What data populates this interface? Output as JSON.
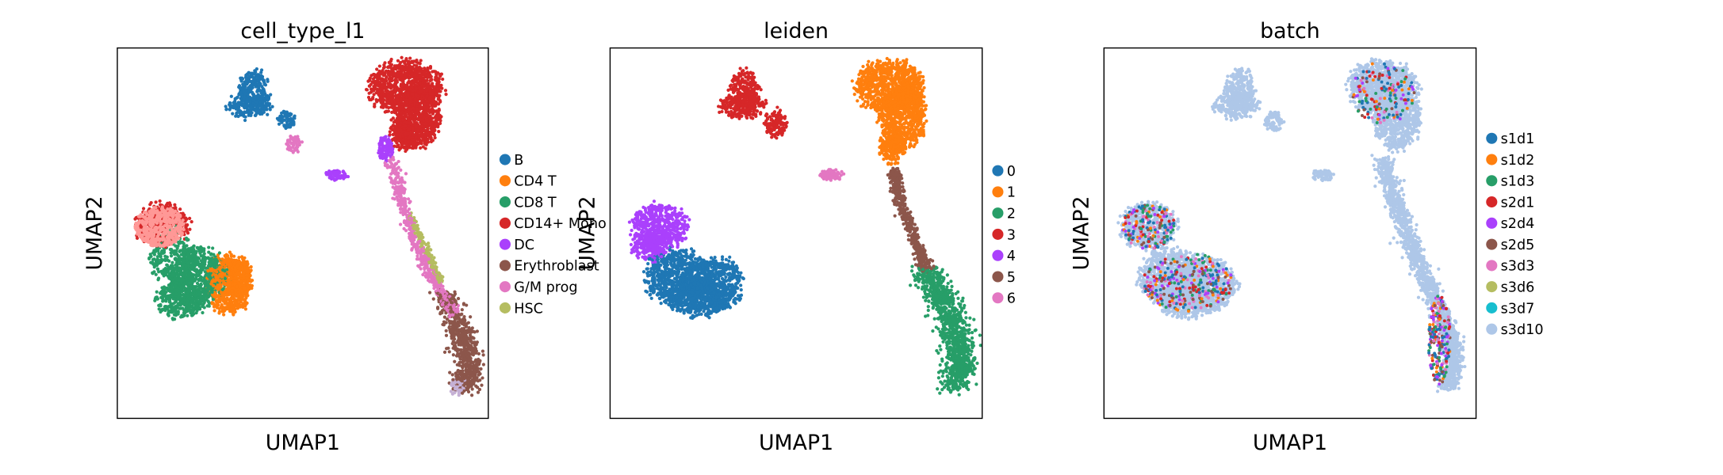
{
  "figure": {
    "background": "#ffffff"
  },
  "chart_data": [
    {
      "type": "scatter",
      "title": "cell_type_l1",
      "xlabel": "UMAP1",
      "ylabel": "UMAP2",
      "ticks_shown": false,
      "grid": false,
      "legend_placement": "right",
      "legend": [
        {
          "label": "B",
          "color": "#1f77b4"
        },
        {
          "label": "CD4 T",
          "color": "#ff7f0e"
        },
        {
          "label": "CD8 T",
          "color": "#279e68"
        },
        {
          "label": "CD14+ Mono",
          "color": "#d62728"
        },
        {
          "label": "DC",
          "color": "#aa40fc"
        },
        {
          "label": "Erythroblast",
          "color": "#8c564b"
        },
        {
          "label": "G/M prog",
          "color": "#e377c2"
        },
        {
          "label": "HSC",
          "color": "#b5bd61"
        }
      ]
    },
    {
      "type": "scatter",
      "title": "leiden",
      "xlabel": "UMAP1",
      "ylabel": "UMAP2",
      "ticks_shown": false,
      "grid": false,
      "legend_placement": "right",
      "legend": [
        {
          "label": "0",
          "color": "#1f77b4"
        },
        {
          "label": "1",
          "color": "#ff7f0e"
        },
        {
          "label": "2",
          "color": "#279e68"
        },
        {
          "label": "3",
          "color": "#d62728"
        },
        {
          "label": "4",
          "color": "#aa40fc"
        },
        {
          "label": "5",
          "color": "#8c564b"
        },
        {
          "label": "6",
          "color": "#e377c2"
        }
      ]
    },
    {
      "type": "scatter",
      "title": "batch",
      "xlabel": "UMAP1",
      "ylabel": "UMAP2",
      "ticks_shown": false,
      "grid": false,
      "legend_placement": "right",
      "legend": [
        {
          "label": "s1d1",
          "color": "#1f77b4"
        },
        {
          "label": "s1d2",
          "color": "#ff7f0e"
        },
        {
          "label": "s1d3",
          "color": "#279e68"
        },
        {
          "label": "s2d1",
          "color": "#d62728"
        },
        {
          "label": "s2d4",
          "color": "#aa40fc"
        },
        {
          "label": "s2d5",
          "color": "#8c564b"
        },
        {
          "label": "s3d3",
          "color": "#e377c2"
        },
        {
          "label": "s3d6",
          "color": "#b5bd61"
        },
        {
          "label": "s3d7",
          "color": "#17becf"
        },
        {
          "label": "s3d10",
          "color": "#aec7e8"
        }
      ]
    }
  ]
}
